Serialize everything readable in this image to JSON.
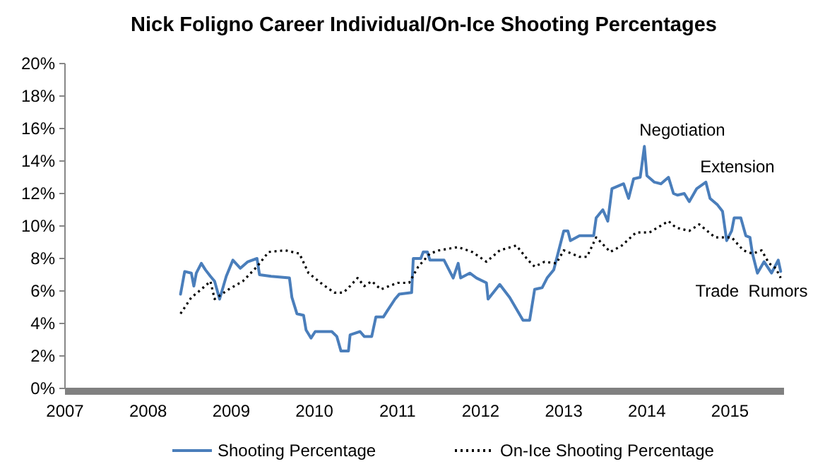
{
  "chart_data": {
    "type": "line",
    "title": "Nick Foligno Career Individual/On-Ice  Shooting Percentages",
    "xlim": [
      2007,
      2015.65
    ],
    "xticks": [
      2007,
      2008,
      2009,
      2010,
      2011,
      2012,
      2013,
      2014,
      2015
    ],
    "ylim": [
      0,
      20
    ],
    "yticks": [
      {
        "value": 0,
        "label": "0%"
      },
      {
        "value": 2,
        "label": "2%"
      },
      {
        "value": 4,
        "label": "4%"
      },
      {
        "value": 6,
        "label": "6%"
      },
      {
        "value": 8,
        "label": "8%"
      },
      {
        "value": 10,
        "label": "10%"
      },
      {
        "value": 12,
        "label": "12%"
      },
      {
        "value": 14,
        "label": "14%"
      },
      {
        "value": 16,
        "label": "16%"
      },
      {
        "value": 18,
        "label": "18%"
      },
      {
        "value": 20,
        "label": "20%"
      }
    ],
    "grid": false,
    "legend": "bottom",
    "marker": "none",
    "annotations": [
      "Negotiation",
      "Extension",
      "Trade  Rumors"
    ],
    "series": [
      {
        "name": "Shooting Percentage",
        "color": "#4a7ebb",
        "line_style": "solid",
        "x": [
          2008.39,
          2008.44,
          2008.52,
          2008.55,
          2008.58,
          2008.64,
          2008.69,
          2008.75,
          2008.8,
          2008.86,
          2008.94,
          2009.02,
          2009.11,
          2009.2,
          2009.31,
          2009.34,
          2009.48,
          2009.7,
          2009.73,
          2009.79,
          2009.87,
          2009.9,
          2009.96,
          2010.01,
          2010.21,
          2010.27,
          2010.32,
          2010.41,
          2010.43,
          2010.55,
          2010.6,
          2010.69,
          2010.74,
          2010.83,
          2010.88,
          2010.97,
          2011.02,
          2011.17,
          2011.19,
          2011.28,
          2011.31,
          2011.36,
          2011.39,
          2011.56,
          2011.67,
          2011.73,
          2011.76,
          2011.87,
          2011.95,
          2012.07,
          2012.09,
          2012.23,
          2012.35,
          2012.51,
          2012.59,
          2012.65,
          2012.74,
          2012.8,
          2012.88,
          2012.94,
          2013.0,
          2013.05,
          2013.08,
          2013.19,
          2013.36,
          2013.39,
          2013.47,
          2013.53,
          2013.58,
          2013.72,
          2013.78,
          2013.84,
          2013.92,
          2013.97,
          2014.0,
          2014.09,
          2014.17,
          2014.26,
          2014.32,
          2014.37,
          2014.45,
          2014.51,
          2014.6,
          2014.71,
          2014.76,
          2014.85,
          2014.91,
          2014.96,
          2015.02,
          2015.05,
          2015.13,
          2015.19,
          2015.24,
          2015.27,
          2015.33,
          2015.41,
          2015.5,
          2015.58,
          2015.61
        ],
        "values": [
          5.8,
          7.2,
          7.1,
          6.3,
          7.1,
          7.7,
          7.3,
          6.9,
          6.6,
          5.5,
          6.9,
          7.9,
          7.4,
          7.8,
          8.0,
          7.0,
          6.9,
          6.8,
          5.6,
          4.6,
          4.5,
          3.6,
          3.1,
          3.5,
          3.5,
          3.2,
          2.3,
          2.3,
          3.3,
          3.5,
          3.2,
          3.2,
          4.4,
          4.4,
          4.8,
          5.5,
          5.8,
          5.9,
          8.0,
          8.0,
          8.4,
          8.4,
          7.9,
          7.9,
          6.8,
          7.7,
          6.8,
          7.1,
          6.8,
          6.5,
          5.5,
          6.4,
          5.6,
          4.2,
          4.2,
          6.1,
          6.2,
          6.8,
          7.3,
          8.5,
          9.7,
          9.7,
          9.1,
          9.4,
          9.4,
          10.5,
          11.0,
          10.3,
          12.3,
          12.6,
          11.7,
          12.9,
          13.0,
          14.9,
          13.1,
          12.7,
          12.6,
          13.0,
          12.0,
          11.9,
          12.0,
          11.5,
          12.3,
          12.7,
          11.7,
          11.3,
          10.9,
          9.1,
          9.7,
          10.5,
          10.5,
          9.4,
          9.3,
          8.3,
          7.1,
          7.8,
          7.1,
          7.9,
          7.2
        ]
      },
      {
        "name": "On-Ice Shooting Percentage",
        "color": "#000000",
        "line_style": "dotted",
        "x": [
          2008.39,
          2008.52,
          2008.64,
          2008.75,
          2008.8,
          2008.97,
          2009.14,
          2009.31,
          2009.45,
          2009.65,
          2009.82,
          2009.93,
          2010.1,
          2010.24,
          2010.35,
          2010.43,
          2010.52,
          2010.6,
          2010.69,
          2010.8,
          2011.0,
          2011.14,
          2011.25,
          2011.39,
          2011.5,
          2011.73,
          2011.9,
          2012.07,
          2012.23,
          2012.43,
          2012.57,
          2012.65,
          2012.77,
          2012.91,
          2013.0,
          2013.19,
          2013.28,
          2013.39,
          2013.56,
          2013.7,
          2013.87,
          2014.03,
          2014.26,
          2014.35,
          2014.51,
          2014.63,
          2014.82,
          2015.02,
          2015.16,
          2015.27,
          2015.38,
          2015.47,
          2015.55,
          2015.61
        ],
        "values": [
          4.6,
          5.6,
          6.1,
          6.6,
          5.5,
          6.1,
          6.6,
          7.5,
          8.4,
          8.5,
          8.3,
          7.1,
          6.4,
          5.9,
          5.9,
          6.3,
          6.8,
          6.3,
          6.6,
          6.1,
          6.5,
          6.5,
          7.5,
          8.3,
          8.5,
          8.7,
          8.4,
          7.8,
          8.5,
          8.8,
          7.9,
          7.5,
          7.8,
          7.7,
          8.5,
          8.1,
          8.1,
          9.3,
          8.4,
          8.8,
          9.6,
          9.6,
          10.3,
          9.9,
          9.7,
          10.1,
          9.3,
          9.3,
          8.5,
          8.3,
          8.5,
          7.7,
          7.4,
          6.8
        ]
      }
    ]
  }
}
